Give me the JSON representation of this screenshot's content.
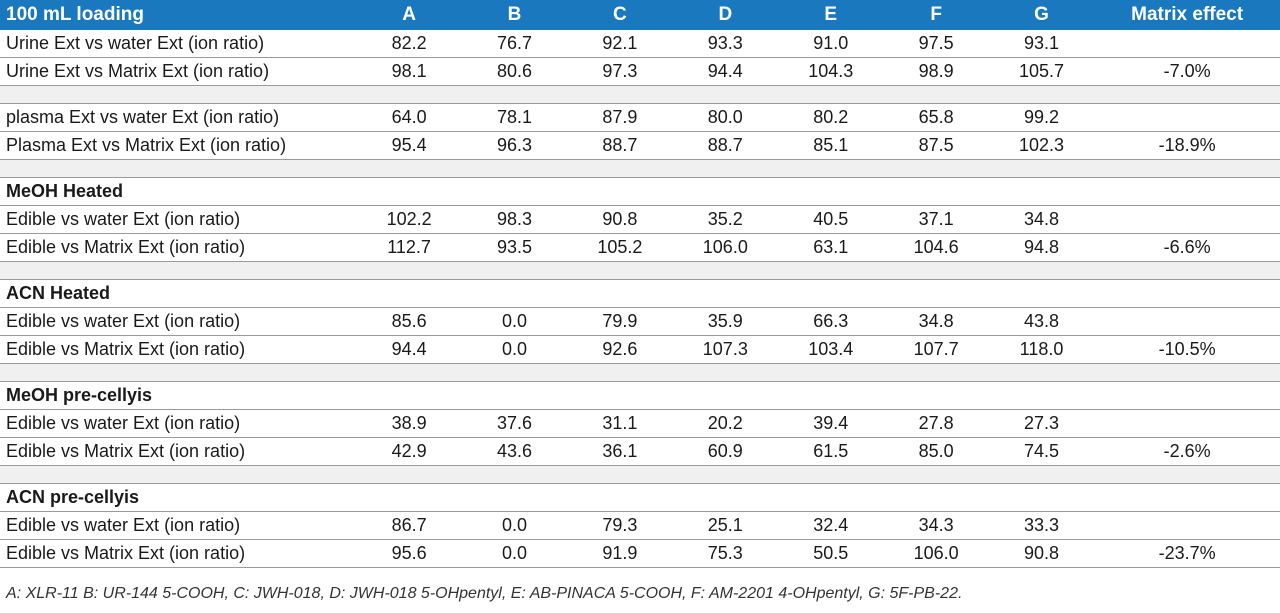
{
  "header": {
    "label": "100 mL loading",
    "columns": [
      "A",
      "B",
      "C",
      "D",
      "E",
      "F",
      "G"
    ],
    "matrix_effect": "Matrix effect"
  },
  "rows": [
    {
      "type": "data",
      "label": "Urine Ext vs water Ext (ion ratio)",
      "values": [
        "82.2",
        "76.7",
        "92.1",
        "93.3",
        "91.0",
        "97.5",
        "93.1"
      ],
      "matrix_effect": ""
    },
    {
      "type": "data",
      "label": "Urine Ext vs Matrix Ext (ion ratio)",
      "values": [
        "98.1",
        "80.6",
        "97.3",
        "94.4",
        "104.3",
        "98.9",
        "105.7"
      ],
      "matrix_effect": "-7.0%"
    },
    {
      "type": "gap"
    },
    {
      "type": "data",
      "label": "plasma Ext vs water Ext (ion ratio)",
      "values": [
        "64.0",
        "78.1",
        "87.9",
        "80.0",
        "80.2",
        "65.8",
        "99.2"
      ],
      "matrix_effect": ""
    },
    {
      "type": "data",
      "label": "Plasma Ext vs Matrix Ext (ion ratio)",
      "values": [
        "95.4",
        "96.3",
        "88.7",
        "88.7",
        "85.1",
        "87.5",
        "102.3"
      ],
      "matrix_effect": "-18.9%"
    },
    {
      "type": "gap"
    },
    {
      "type": "heading",
      "label": "MeOH Heated"
    },
    {
      "type": "data",
      "label": "Edible vs water Ext (ion ratio)",
      "values": [
        "102.2",
        "98.3",
        "90.8",
        "35.2",
        "40.5",
        "37.1",
        "34.8"
      ],
      "matrix_effect": ""
    },
    {
      "type": "data",
      "label": "Edible vs Matrix Ext (ion ratio)",
      "values": [
        "112.7",
        "93.5",
        "105.2",
        "106.0",
        "63.1",
        "104.6",
        "94.8"
      ],
      "matrix_effect": "-6.6%"
    },
    {
      "type": "gap"
    },
    {
      "type": "heading",
      "label": "ACN Heated"
    },
    {
      "type": "data",
      "label": "Edible vs water Ext (ion ratio)",
      "values": [
        "85.6",
        "0.0",
        "79.9",
        "35.9",
        "66.3",
        "34.8",
        "43.8"
      ],
      "matrix_effect": ""
    },
    {
      "type": "data",
      "label": "Edible vs Matrix Ext (ion ratio)",
      "values": [
        "94.4",
        "0.0",
        "92.6",
        "107.3",
        "103.4",
        "107.7",
        "118.0"
      ],
      "matrix_effect": "-10.5%"
    },
    {
      "type": "gap"
    },
    {
      "type": "heading",
      "label": "MeOH pre-cellyis"
    },
    {
      "type": "data",
      "label": "Edible vs water Ext (ion ratio)",
      "values": [
        "38.9",
        "37.6",
        "31.1",
        "20.2",
        "39.4",
        "27.8",
        "27.3"
      ],
      "matrix_effect": ""
    },
    {
      "type": "data",
      "label": "Edible vs Matrix Ext (ion ratio)",
      "values": [
        "42.9",
        "43.6",
        "36.1",
        "60.9",
        "61.5",
        "85.0",
        "74.5"
      ],
      "matrix_effect": "-2.6%"
    },
    {
      "type": "gap"
    },
    {
      "type": "heading",
      "label": "ACN pre-cellyis"
    },
    {
      "type": "data",
      "label": "Edible vs water Ext (ion ratio)",
      "values": [
        "86.7",
        "0.0",
        "79.3",
        "25.1",
        "32.4",
        "34.3",
        "33.3"
      ],
      "matrix_effect": ""
    },
    {
      "type": "data",
      "label": "Edible vs Matrix Ext (ion ratio)",
      "values": [
        "95.6",
        "0.0",
        "91.9",
        "75.3",
        "50.5",
        "106.0",
        "90.8"
      ],
      "matrix_effect": "-23.7%"
    }
  ],
  "footnote": "A: XLR-11 B: UR-144 5-COOH, C: JWH-018, D: JWH-018 5-OHpentyl, E: AB-PINACA 5-COOH, F: AM-2201 4-OHpentyl, G: 5F-PB-22.",
  "colors": {
    "header_bg": "#1a78be",
    "gap_bg": "#f0f0f0",
    "rule": "#9a9a9a"
  }
}
